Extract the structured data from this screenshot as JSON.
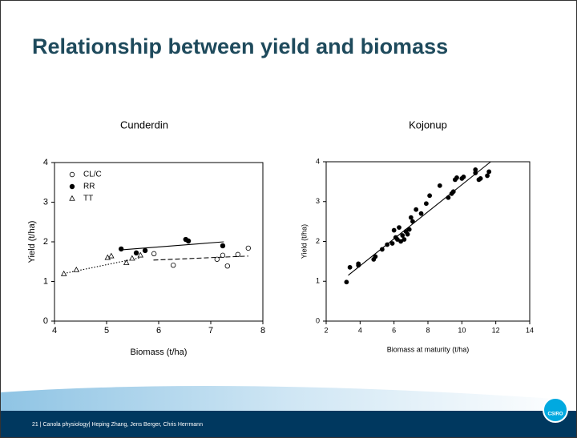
{
  "slide": {
    "title": "Relationship between yield and biomass",
    "footer": "21 | Canola physiology| Heping Zhang, Jens Berger, Chris Herrmann",
    "logo": "CSIRO"
  },
  "chart_data": [
    {
      "type": "scatter",
      "title": "Cunderdin",
      "x_label": "Biomass (t/ha)",
      "y_label": "Yield (t/ha)",
      "xlim": [
        4,
        8
      ],
      "xticks": [
        4,
        5,
        6,
        7,
        8
      ],
      "ylim": [
        0,
        4
      ],
      "yticks": [
        0,
        1,
        2,
        3,
        4
      ],
      "legend": "upper left",
      "color": "#000000",
      "series": [
        {
          "name": "CL/C",
          "marker": "open-circle",
          "x": [
            5.91,
            6.28,
            7.12,
            7.23,
            7.32,
            7.52,
            7.72
          ],
          "values": [
            1.7,
            1.41,
            1.56,
            1.66,
            1.39,
            1.68,
            1.84
          ],
          "fit": {
            "style": "dashed",
            "x": [
              5.9,
              7.72
            ],
            "values": [
              1.54,
              1.64
            ]
          }
        },
        {
          "name": "RR",
          "marker": "filled-circle",
          "x": [
            5.28,
            5.57,
            5.74,
            6.52,
            6.57,
            7.23
          ],
          "values": [
            1.82,
            1.72,
            1.78,
            2.06,
            2.02,
            1.9
          ],
          "fit": {
            "style": "solid",
            "x": [
              5.3,
              7.25
            ],
            "values": [
              1.8,
              2.0
            ]
          }
        },
        {
          "name": "TT",
          "marker": "open-triangle",
          "x": [
            4.18,
            4.42,
            5.02,
            5.09,
            5.38,
            5.49,
            5.65
          ],
          "values": [
            1.19,
            1.29,
            1.6,
            1.64,
            1.47,
            1.58,
            1.66
          ],
          "fit": {
            "style": "dotted",
            "x": [
              4.18,
              5.65
            ],
            "values": [
              1.2,
              1.6
            ]
          }
        }
      ]
    },
    {
      "type": "scatter",
      "title": "Kojonup",
      "x_label": "Biomass at maturity (t/ha)",
      "y_label": "Yield (t/ha)",
      "xlim": [
        2,
        14
      ],
      "xticks": [
        2,
        4,
        6,
        8,
        10,
        12,
        14
      ],
      "ylim": [
        0,
        4
      ],
      "yticks": [
        0,
        1,
        2,
        3,
        4
      ],
      "color": "#000000",
      "series": [
        {
          "marker": "filled-circle",
          "x": [
            3.2,
            3.4,
            3.9,
            3.9,
            4.8,
            4.9,
            5.3,
            5.6,
            5.9,
            6.0,
            6.1,
            6.2,
            6.3,
            6.4,
            6.5,
            6.6,
            6.7,
            6.8,
            6.9,
            7.0,
            7.1,
            7.3,
            7.6,
            7.9,
            8.1,
            8.7,
            9.2,
            9.4,
            9.5,
            9.6,
            9.7,
            10.0,
            10.1,
            10.8,
            10.8,
            11.0,
            11.1,
            11.5,
            11.6
          ],
          "values": [
            0.98,
            1.35,
            1.4,
            1.44,
            1.55,
            1.62,
            1.8,
            1.92,
            1.95,
            2.28,
            2.1,
            2.05,
            2.35,
            2.0,
            2.15,
            2.05,
            2.25,
            2.18,
            2.3,
            2.6,
            2.5,
            2.8,
            2.7,
            2.95,
            3.15,
            3.4,
            3.1,
            3.2,
            3.25,
            3.55,
            3.6,
            3.58,
            3.62,
            3.8,
            3.72,
            3.55,
            3.58,
            3.65,
            3.75
          ],
          "fit": {
            "style": "solid",
            "x": [
              3.3,
              11.7
            ],
            "values": [
              1.15,
              4.0
            ]
          }
        }
      ]
    }
  ]
}
